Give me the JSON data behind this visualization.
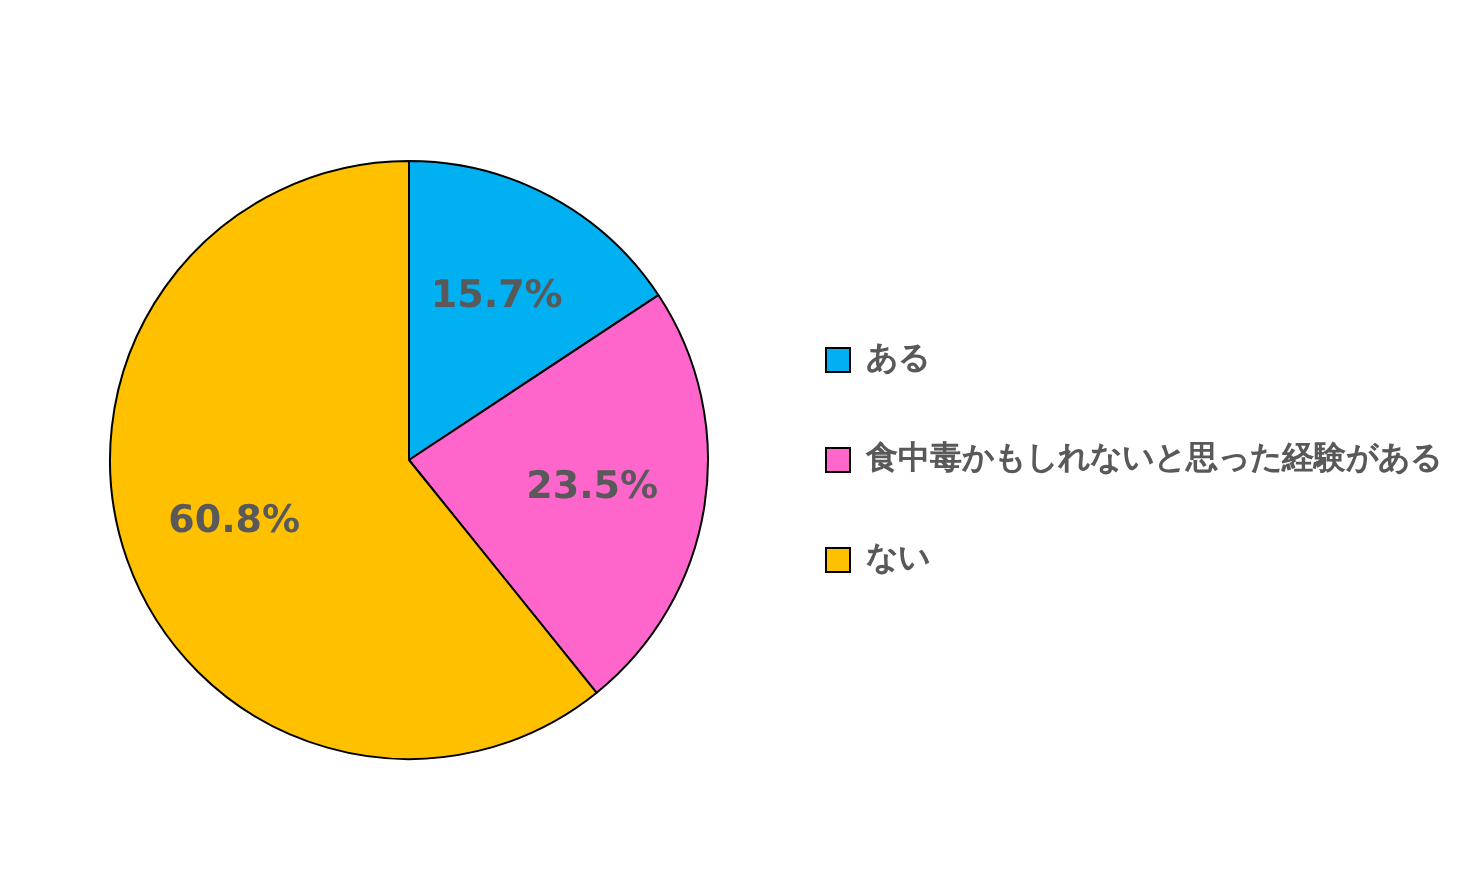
{
  "chart_data": {
    "type": "pie",
    "categories": [
      "ある",
      "食中毒かもしれないと思った経験がある",
      "ない"
    ],
    "values": [
      15.7,
      23.5,
      60.8
    ],
    "colors": [
      "#00b0f0",
      "#ff66cc",
      "#ffc000"
    ],
    "value_labels": [
      "15.7%",
      "23.5%",
      "60.8%"
    ],
    "legend": "right"
  }
}
